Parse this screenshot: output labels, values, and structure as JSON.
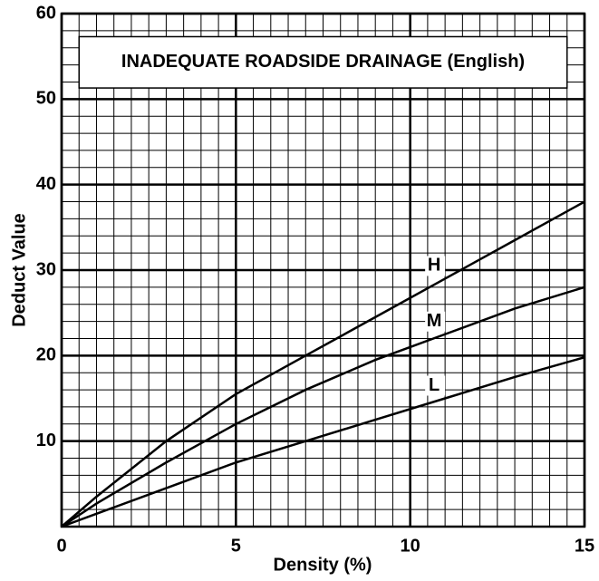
{
  "chart_data": {
    "type": "line",
    "title": "INADEQUATE ROADSIDE DRAINAGE (English)",
    "xlabel": "Density (%)",
    "ylabel": "Deduct Value",
    "xlim": [
      0,
      15
    ],
    "ylim": [
      0,
      60
    ],
    "xticks": [
      0,
      5,
      10,
      15
    ],
    "yticks": [
      10,
      20,
      30,
      40,
      50,
      60
    ],
    "grid": true,
    "minor_grid_x_step": 0.5,
    "minor_grid_y_step": 2,
    "x": [
      0,
      1,
      3,
      5,
      7,
      9,
      11,
      13,
      15
    ],
    "series": [
      {
        "name": "H",
        "color": "#000000",
        "values": [
          0,
          3.5,
          10,
          15.5,
          20,
          24.5,
          29,
          33.5,
          38
        ]
      },
      {
        "name": "M",
        "color": "#000000",
        "values": [
          0,
          2.7,
          7.5,
          12,
          16,
          19.5,
          22.5,
          25.5,
          28
        ]
      },
      {
        "name": "L",
        "color": "#000000",
        "values": [
          0,
          1.5,
          4.5,
          7.5,
          10,
          12.5,
          15,
          17.5,
          19.8
        ]
      }
    ]
  }
}
